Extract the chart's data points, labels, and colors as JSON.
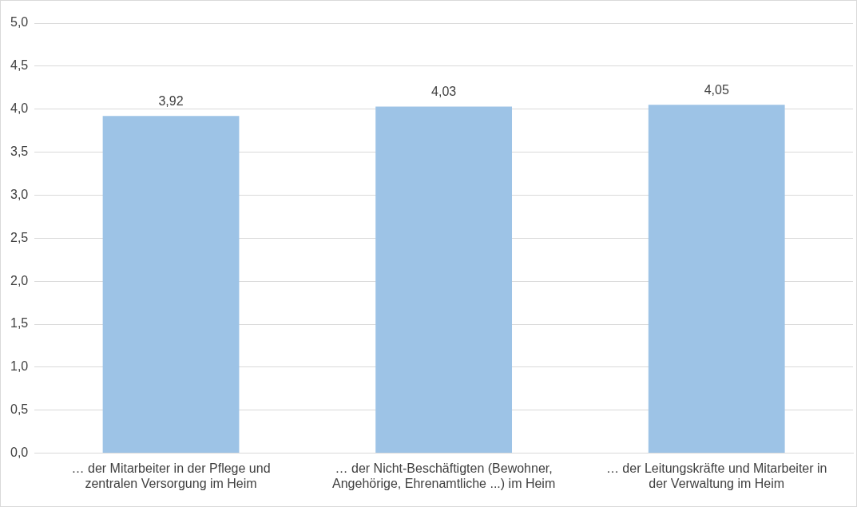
{
  "chart_data": {
    "type": "bar",
    "categories": [
      "… der Mitarbeiter in der Pflege und zentralen Versorgung im Heim",
      "… der Nicht-Beschäftigten (Bewohner, Angehörige, Ehrenamtliche ...) im Heim",
      "… der Leitungskräfte und Mitarbeiter in der Verwaltung im Heim"
    ],
    "values": [
      3.92,
      4.03,
      4.05
    ],
    "value_labels": [
      "3,92",
      "4,03",
      "4,05"
    ],
    "color": "#9dc3e6",
    "ylim": [
      0,
      5
    ],
    "yticks": [
      {
        "value": 0,
        "label": "0,0"
      },
      {
        "value": 0.5,
        "label": "0,5"
      },
      {
        "value": 1,
        "label": "1,0"
      },
      {
        "value": 1.5,
        "label": "1,5"
      },
      {
        "value": 2,
        "label": "2,0"
      },
      {
        "value": 2.5,
        "label": "2,5"
      },
      {
        "value": 3,
        "label": "3,0"
      },
      {
        "value": 3.5,
        "label": "3,5"
      },
      {
        "value": 4,
        "label": "4,0"
      },
      {
        "value": 4.5,
        "label": "4,5"
      },
      {
        "value": 5,
        "label": "5,0"
      }
    ],
    "grid": "y",
    "legend": false
  }
}
